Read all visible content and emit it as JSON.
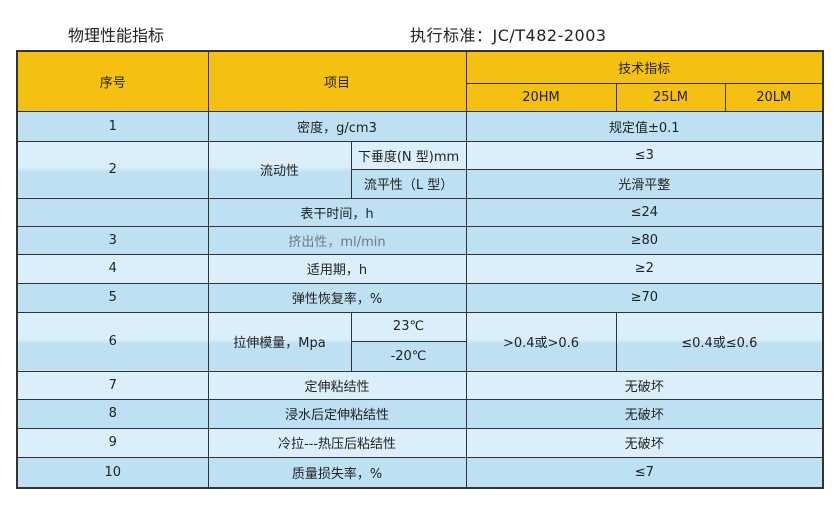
{
  "heading": {
    "left": "物理性能指标",
    "right": "执行标准：JC/T482-2003"
  },
  "table": {
    "headers": {
      "no": "序号",
      "item": "项目",
      "spec": "技术指标",
      "grades": [
        "20HM",
        "25LM",
        "20LM"
      ]
    },
    "rows": {
      "r1": {
        "no": "1",
        "item": "密度，g/cm3",
        "value": "规定值±0.1"
      },
      "r2": {
        "no": "2",
        "item": "流动性",
        "sub1": "下垂度(N 型)mm",
        "val1": "≤3",
        "sub2": "流平性（L 型）",
        "val2": "光滑平整"
      },
      "r2c": {
        "no": "",
        "item": "表干时间，h",
        "value": "≤24"
      },
      "r3": {
        "no": "3",
        "item": "挤出性，ml/min",
        "value": "≥80"
      },
      "r4": {
        "no": "4",
        "item": "适用期，h",
        "value": "≥2"
      },
      "r5": {
        "no": "5",
        "item": "弹性恢复率，%",
        "value": "≥70"
      },
      "r6": {
        "no": "6",
        "item": "拉伸模量，Mpa",
        "temp1": "23℃",
        "temp2": "-20℃",
        "val_hm": ">0.4或>0.6",
        "val_lm": "≤0.4或≤0.6"
      },
      "r7": {
        "no": "7",
        "item": "定伸粘结性",
        "value": "无破坏"
      },
      "r8": {
        "no": "8",
        "item": "浸水后定伸粘结性",
        "value": "无破坏"
      },
      "r9": {
        "no": "9",
        "item": "冷拉---热压后粘结性",
        "value": "无破坏"
      },
      "r10": {
        "no": "10",
        "item": "质量损失率，%",
        "value": "≤7"
      }
    }
  }
}
